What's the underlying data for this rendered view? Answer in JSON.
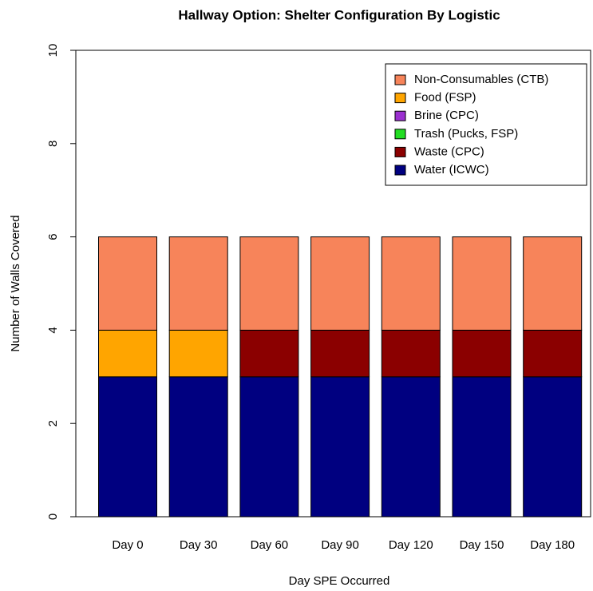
{
  "chart_data": {
    "type": "stacked_bar",
    "title": "Hallway Option: Shelter Configuration By Logistic",
    "x_label": "Day SPE Occurred",
    "y_label": "Number of Walls Covered",
    "categories": [
      "Day 0",
      "Day 30",
      "Day 60",
      "Day 90",
      "Day 120",
      "Day 150",
      "Day 180"
    ],
    "series": [
      {
        "name": "Water (ICWC)",
        "color": "#000080",
        "values": [
          3,
          3,
          3,
          3,
          3,
          3,
          3
        ]
      },
      {
        "name": "Waste (CPC)",
        "color": "#8b0000",
        "values": [
          0,
          0,
          1,
          1,
          1,
          1,
          1
        ]
      },
      {
        "name": "Trash (Pucks, FSP)",
        "color": "#22dd22",
        "values": [
          0,
          0,
          0,
          0,
          0,
          0,
          0
        ]
      },
      {
        "name": "Brine (CPC)",
        "color": "#9b30d0",
        "values": [
          0,
          0,
          0,
          0,
          0,
          0,
          0
        ]
      },
      {
        "name": "Food (FSP)",
        "color": "#ffa500",
        "values": [
          1,
          1,
          0,
          0,
          0,
          0,
          0
        ]
      },
      {
        "name": "Non-Consumables (CTB)",
        "color": "#f7845a",
        "values": [
          2,
          2,
          2,
          2,
          2,
          2,
          2
        ]
      }
    ],
    "ylim": [
      0,
      10
    ],
    "yticks": [
      0,
      2,
      4,
      6,
      8,
      10
    ],
    "legend": "top-right"
  }
}
